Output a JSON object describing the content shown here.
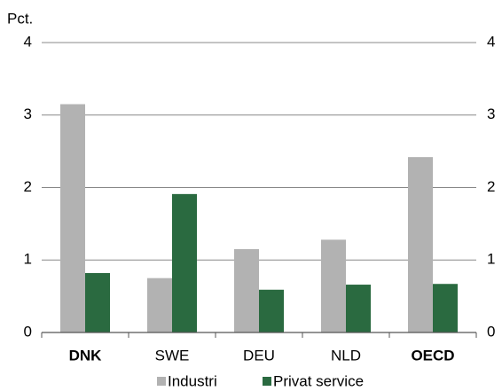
{
  "chart_data": {
    "type": "bar",
    "y_axis_label": "Pct.",
    "categories": [
      "DNK",
      "SWE",
      "DEU",
      "NLD",
      "OECD"
    ],
    "bold_categories": [
      0,
      4
    ],
    "series": [
      {
        "name": "Industri",
        "color": "#b2b2b2",
        "values": [
          3.15,
          0.75,
          1.15,
          1.28,
          2.42
        ]
      },
      {
        "name": "Privat service",
        "color": "#2a6a40",
        "values": [
          0.82,
          1.91,
          0.59,
          0.66,
          0.67
        ]
      }
    ],
    "ylim": [
      0,
      4
    ],
    "yticks": [
      0,
      1,
      2,
      3,
      4
    ],
    "y2lim": [
      0,
      4
    ],
    "y2ticks": [
      0,
      1,
      2,
      3,
      4
    ],
    "grid": true,
    "legend": "bottom"
  }
}
